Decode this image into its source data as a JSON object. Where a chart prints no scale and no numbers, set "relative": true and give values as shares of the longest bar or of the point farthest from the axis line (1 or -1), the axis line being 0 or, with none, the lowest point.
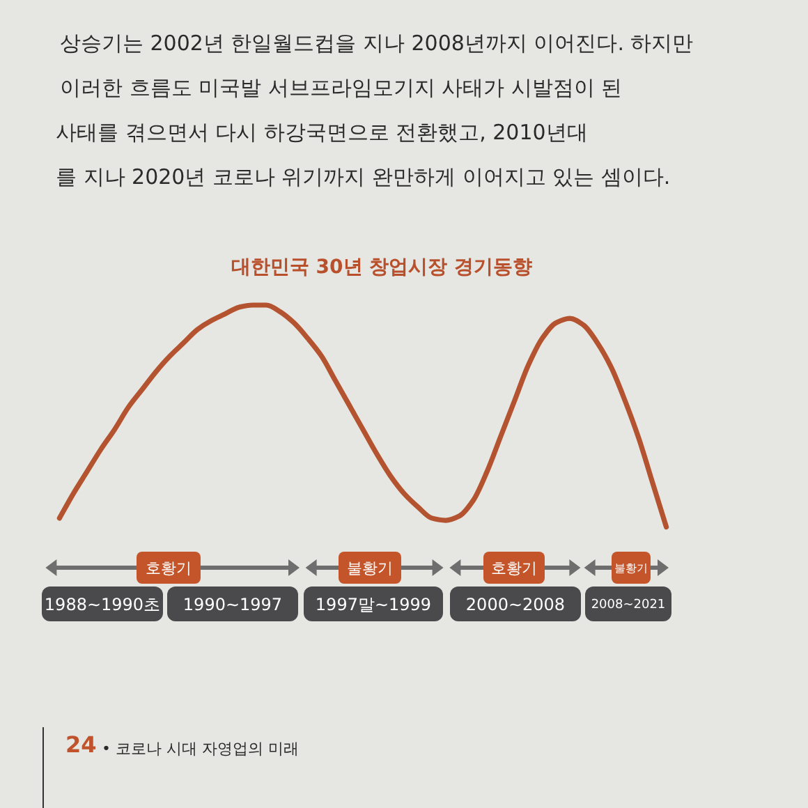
{
  "chart_data": {
    "type": "line",
    "title": "대한민국 30년 창업시장 경기동향",
    "categories": [
      null,
      null,
      null,
      null,
      null,
      null,
      null,
      null,
      null,
      null,
      null,
      null,
      null,
      null,
      null,
      null,
      null,
      null,
      null,
      null,
      null,
      null,
      null,
      null,
      null,
      null,
      null,
      null,
      null,
      null,
      null,
      null,
      null,
      null,
      null,
      null,
      null,
      null,
      null,
      null,
      null,
      null,
      null,
      null,
      null
    ],
    "series": [
      {
        "color": "#b4532f",
        "values": [
          0.04,
          0.15,
          0.25,
          0.35,
          0.44,
          0.54,
          0.62,
          0.7,
          0.77,
          0.83,
          0.89,
          0.93,
          0.96,
          0.99,
          1,
          1,
          0.97,
          0.92,
          0.85,
          0.77,
          0.66,
          0.55,
          0.44,
          0.33,
          0.23,
          0.15,
          0.09,
          0.04,
          0.03,
          0.05,
          0.12,
          0.25,
          0.41,
          0.57,
          0.73,
          0.85,
          0.92,
          0.94,
          0.91,
          0.83,
          0.72,
          0.57,
          0.4,
          0.2,
          0
        ]
      }
    ],
    "relative": true,
    "annotations": [
      "호황기",
      "불황기",
      "호황기",
      "불황기",
      "1988~1990초",
      "1990~1997",
      "1997말~1999",
      "2000~2008",
      "2008~2021",
      "상승기는 2002년 한일월드컵을 지나 2008년까지 이어진다. 하지만",
      "이러한 흐름도 미국발 서브프라임모기지 사태가 시발점이 된",
      "사태를 겪으면서 다시 하강국면으로 전환했고, 2010년대",
      "를 지나 2020년 코로나 위기까지 완만하게 이어지고 있는 셈이다.",
      "24",
      "• 코로나 시대 자영업의 미래"
    ]
  }
}
